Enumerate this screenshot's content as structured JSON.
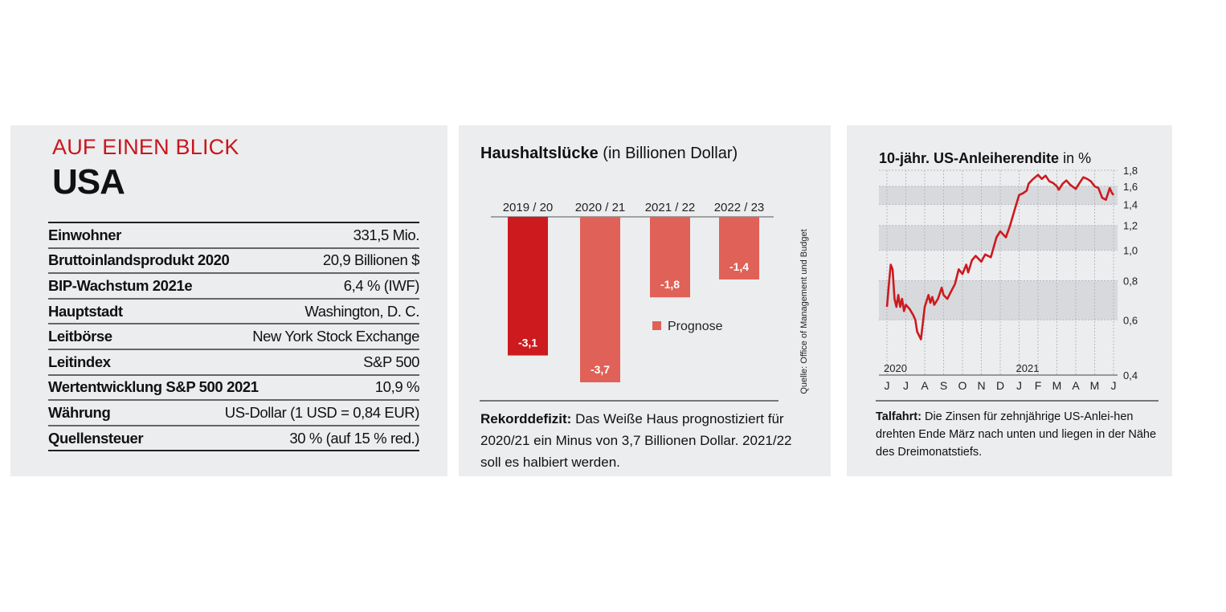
{
  "facts_panel": {
    "kicker": "AUF EINEN BLICK",
    "country": "USA",
    "rows": [
      {
        "label": "Einwohner",
        "value": "331,5 Mio."
      },
      {
        "label": "Bruttoinlandsprodukt 2020",
        "value": "20,9 Billionen $"
      },
      {
        "label": "BIP-Wachstum 2021e",
        "value": "6,4 % (IWF)"
      },
      {
        "label": "Hauptstadt",
        "value": "Washington, D. C."
      },
      {
        "label": "Leitbörse",
        "value": "New York Stock Exchange"
      },
      {
        "label": "Leitindex",
        "value": "S&P 500"
      },
      {
        "label": "Wertentwicklung S&P 500 2021",
        "value": "10,9 %"
      },
      {
        "label": "Währung",
        "value": "US-Dollar (1 USD = 0,84 EUR)"
      },
      {
        "label": "Quellensteuer",
        "value": "30 % (auf 15 % red.)"
      }
    ]
  },
  "budget_panel": {
    "title_bold": "Haushaltslücke",
    "title_rest": " (in Billionen Dollar)",
    "source": "Quelle: Office of Management und Budget",
    "caption_bold": "Rekorddefizit:",
    "caption_rest": " Das Weiße Haus prognostiziert für 2020/21 ein Minus von 3,7 Billionen Dollar. 2021/22 soll es halbiert werden.",
    "colors": {
      "actual": "#cc1a1f",
      "forecast": "#e06157"
    }
  },
  "yield_panel": {
    "title_bold": "10-jähr. US-Anleiherendite",
    "title_rest": " in %",
    "caption_bold": "Talfahrt:",
    "caption_rest": " Die Zinsen für zehnjährige US-Anlei-hen drehten Ende März nach unten und liegen in der Nähe des Dreimonatstiefs.",
    "line_color": "#cc1a1f"
  },
  "chart_data": [
    {
      "type": "bar",
      "title": "Haushaltslücke (in Billionen Dollar)",
      "categories": [
        "2019 / 20",
        "2020 / 21",
        "2021 / 22",
        "2022 / 23"
      ],
      "values": [
        -3.1,
        -3.7,
        -1.8,
        -1.4
      ],
      "value_labels": [
        "-3,1",
        "-3,7",
        "-1,8",
        "-1,4"
      ],
      "forecast": [
        false,
        true,
        true,
        true
      ],
      "legend": [
        "Prognose"
      ],
      "legend_position": "right",
      "ylim": [
        -3.7,
        0
      ]
    },
    {
      "type": "line",
      "title": "10-jähr. US-Anleiherendite in %",
      "y_scale": "log",
      "ylim": [
        0.4,
        1.8
      ],
      "y_ticks": [
        0.4,
        0.6,
        0.8,
        1.0,
        1.2,
        1.4,
        1.6,
        1.8
      ],
      "y_tick_labels": [
        "0,4",
        "0,6",
        "0,8",
        "1,0",
        "1,2",
        "1,4",
        "1,6",
        "1,8"
      ],
      "x_month_labels": [
        "J",
        "J",
        "A",
        "S",
        "O",
        "N",
        "D",
        "J",
        "F",
        "M",
        "A",
        "M",
        "J"
      ],
      "x_year_labels": [
        {
          "text": "2020",
          "at_month": 0
        },
        {
          "text": "2021",
          "at_month": 7
        }
      ],
      "grid": true,
      "series": [
        {
          "x": [
            0.0,
            0.1,
            0.2,
            0.3,
            0.4,
            0.5,
            0.6,
            0.7,
            0.8,
            0.9,
            1.0,
            1.2,
            1.4,
            1.5,
            1.6,
            1.8,
            2.0,
            2.2,
            2.3,
            2.4,
            2.5,
            2.7,
            2.9,
            3.0,
            3.2,
            3.4,
            3.6,
            3.8,
            4.0,
            4.2,
            4.3,
            4.5,
            4.7,
            5.0,
            5.2,
            5.5,
            5.8,
            6.0,
            6.3,
            6.5,
            6.8,
            7.0,
            7.2,
            7.4,
            7.5,
            7.7,
            8.0,
            8.2,
            8.4,
            8.6,
            8.8,
            9.0,
            9.1,
            9.3,
            9.5,
            9.7,
            10.0,
            10.2,
            10.4,
            10.6,
            10.8,
            11.0,
            11.2,
            11.4,
            11.6,
            11.8,
            11.9,
            12.0
          ],
          "y": [
            0.66,
            0.78,
            0.9,
            0.87,
            0.7,
            0.66,
            0.72,
            0.66,
            0.7,
            0.64,
            0.67,
            0.65,
            0.62,
            0.6,
            0.55,
            0.52,
            0.66,
            0.72,
            0.68,
            0.71,
            0.67,
            0.7,
            0.76,
            0.72,
            0.7,
            0.74,
            0.78,
            0.87,
            0.84,
            0.9,
            0.85,
            0.93,
            0.96,
            0.92,
            0.97,
            0.95,
            1.1,
            1.15,
            1.1,
            1.19,
            1.37,
            1.5,
            1.52,
            1.55,
            1.63,
            1.68,
            1.74,
            1.69,
            1.73,
            1.66,
            1.64,
            1.6,
            1.56,
            1.63,
            1.67,
            1.62,
            1.57,
            1.64,
            1.71,
            1.69,
            1.66,
            1.6,
            1.58,
            1.47,
            1.45,
            1.58,
            1.53,
            1.5
          ]
        }
      ]
    }
  ]
}
